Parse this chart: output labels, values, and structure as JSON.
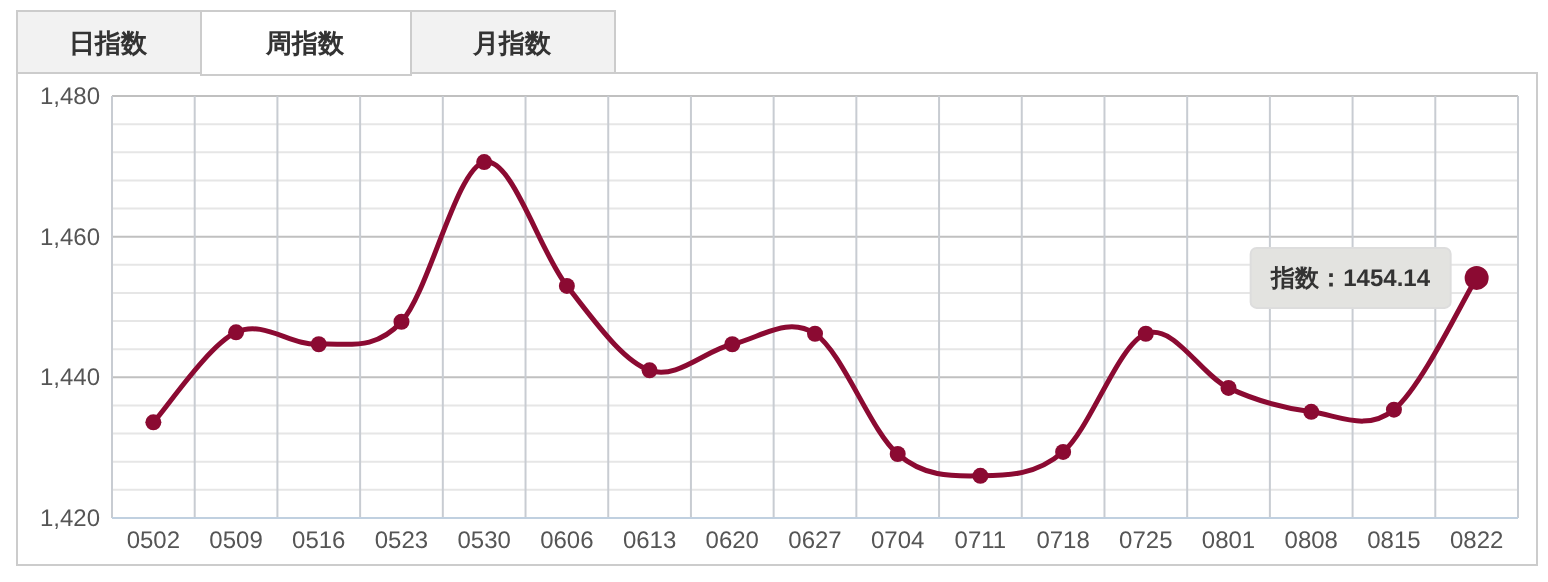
{
  "chart_data": {
    "type": "line",
    "categories": [
      "0502",
      "0509",
      "0516",
      "0523",
      "0530",
      "0606",
      "0613",
      "0620",
      "0627",
      "0704",
      "0711",
      "0718",
      "0725",
      "0801",
      "0808",
      "0815",
      "0822"
    ],
    "series": [
      {
        "color": "#8b0a32",
        "values": [
          1433.6,
          1446.4,
          1444.7,
          1447.9,
          1470.6,
          1453.0,
          1441.0,
          1444.7,
          1446.2,
          1429.1,
          1426.0,
          1429.4,
          1446.2,
          1438.5,
          1435.1,
          1435.4,
          1454.14
        ]
      }
    ],
    "ylim": [
      1420,
      1480
    ],
    "yticks": [
      {
        "value": 1420,
        "label": "1,420"
      },
      {
        "value": 1440,
        "label": "1,440"
      },
      {
        "value": 1460,
        "label": "1,460"
      },
      {
        "value": 1480,
        "label": "1,480"
      }
    ],
    "grid": true,
    "marker": "circle",
    "line_style": "solid",
    "annotations": [
      "日指数",
      "周指数",
      "月指数",
      {
        "text": "指数：1454.14",
        "x": "0822",
        "y": 1454.14
      }
    ]
  }
}
